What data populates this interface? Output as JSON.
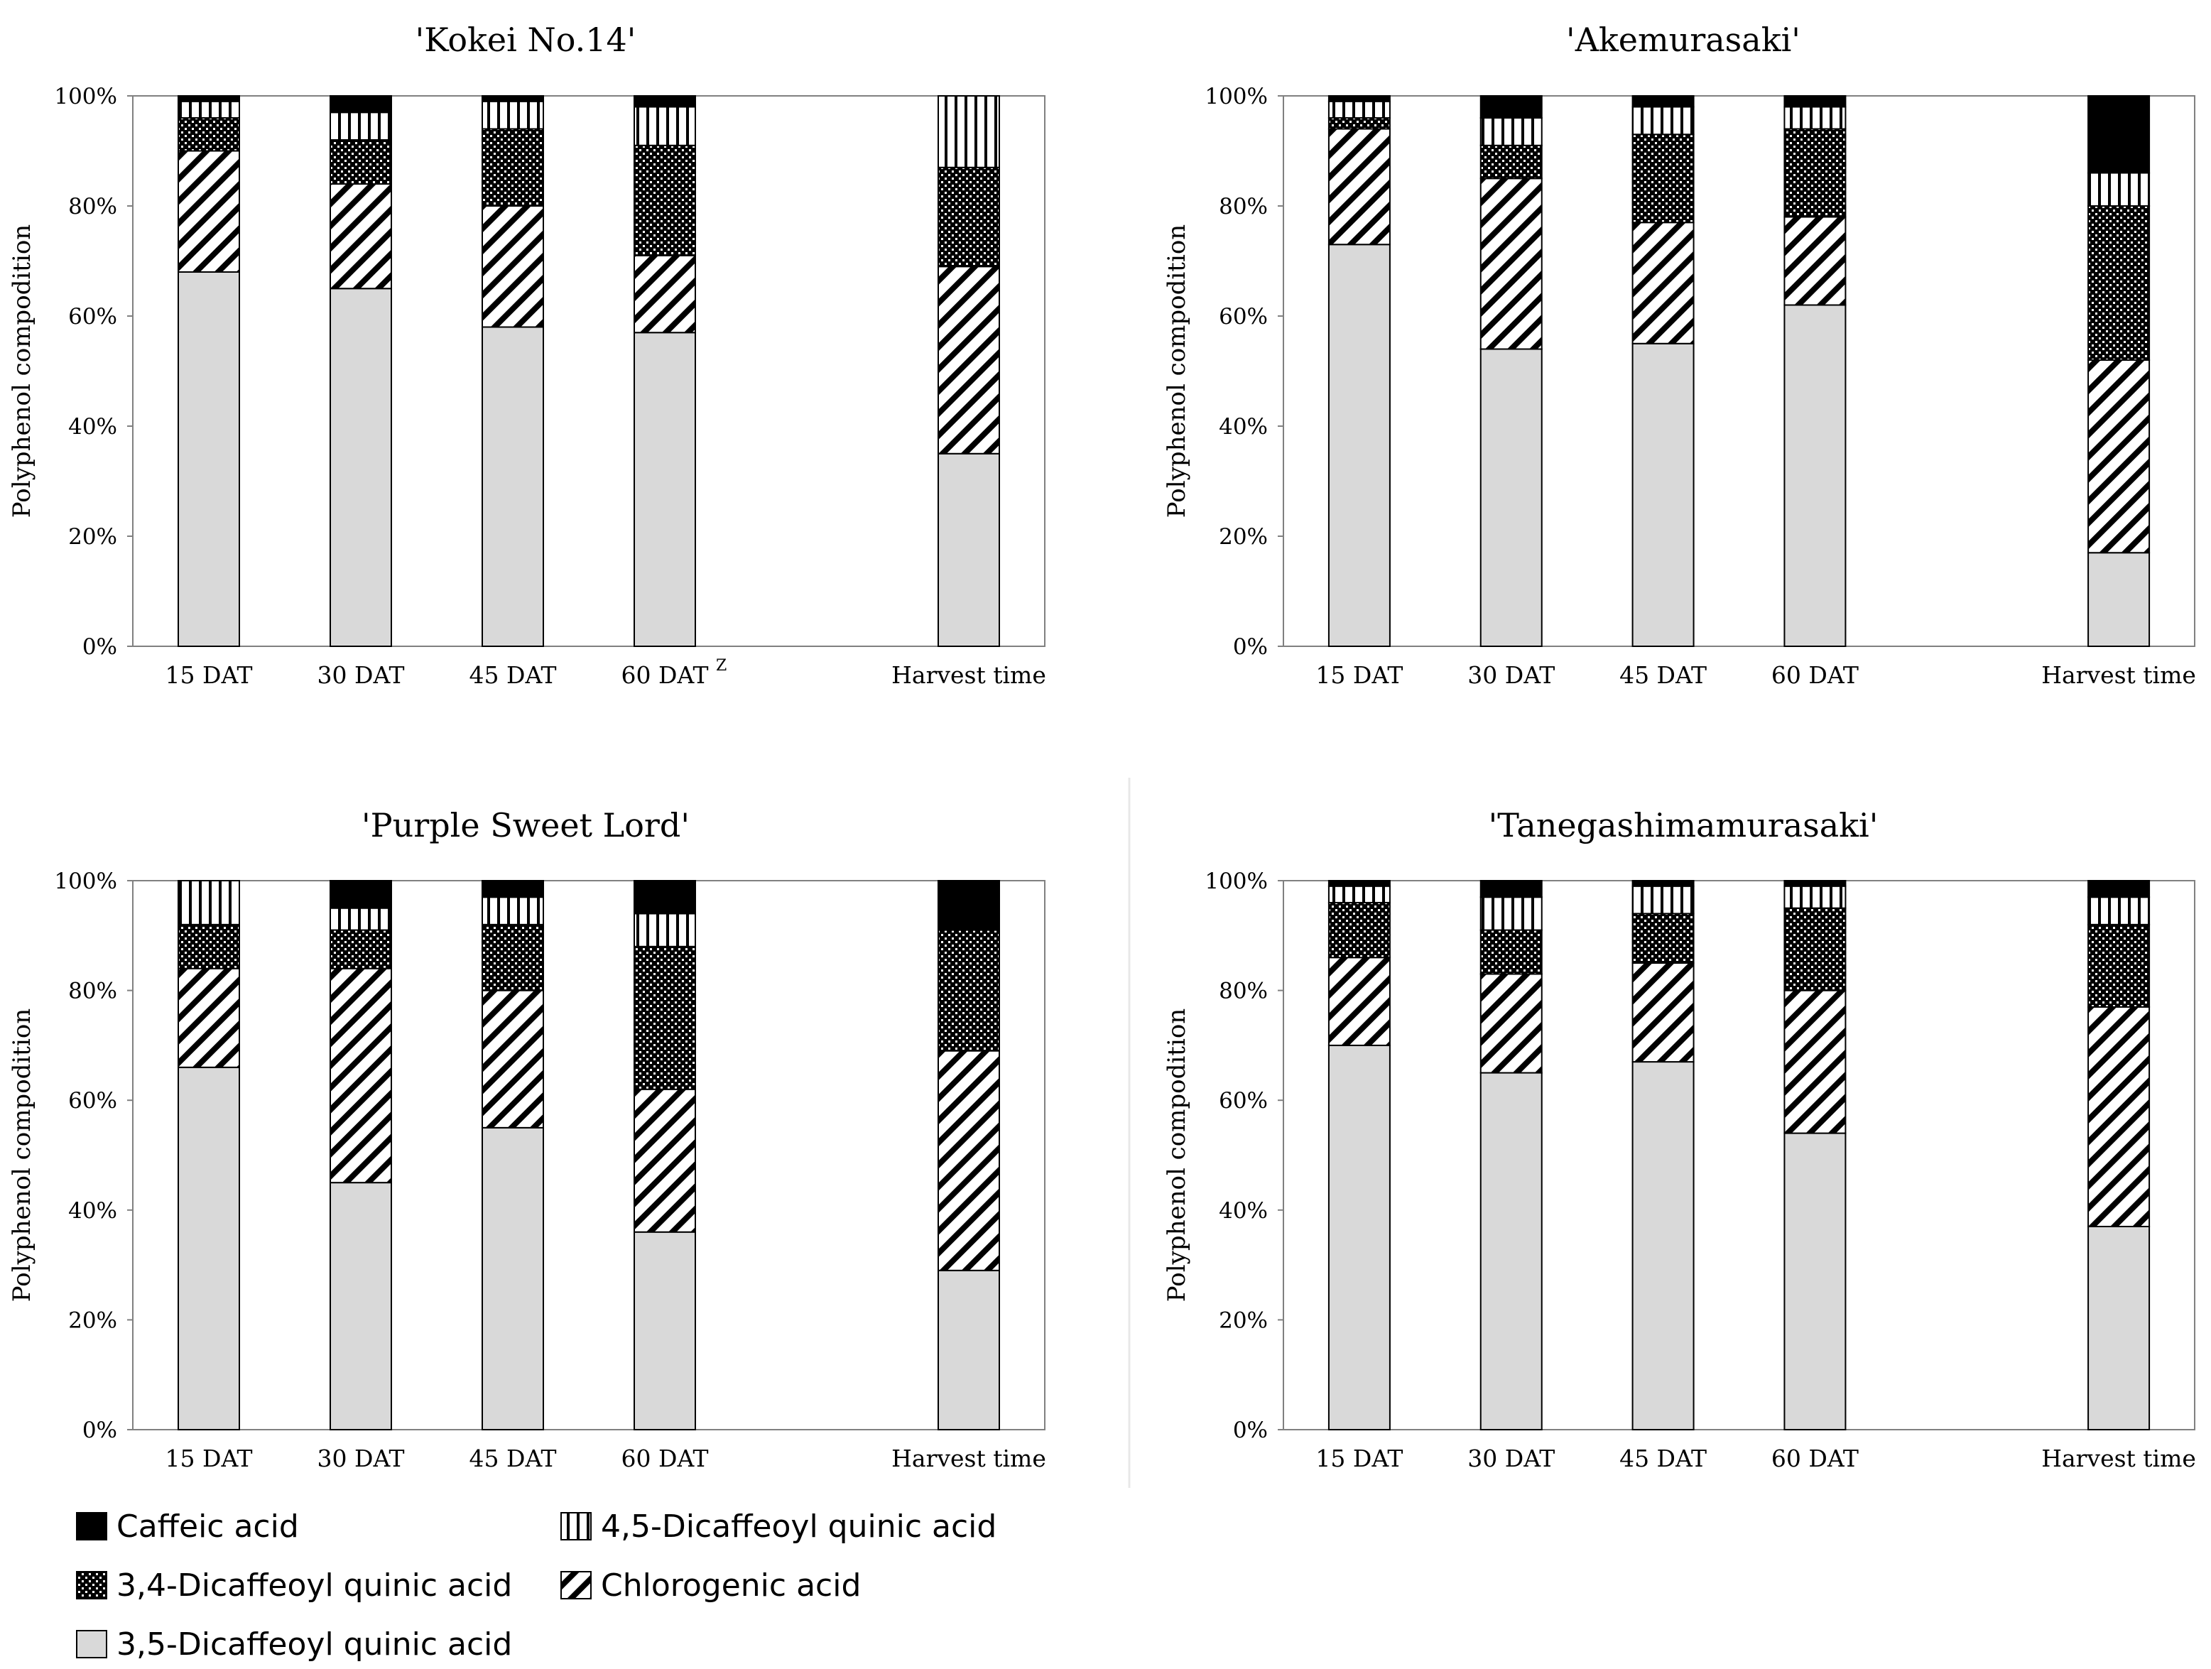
{
  "chart_data": [
    {
      "type": "bar",
      "stacked": true,
      "title": "'Kokei No.14'",
      "ylabel": "Polyphenol compodition",
      "categories": [
        "15 DAT",
        "30 DAT",
        "45 DAT",
        "60 DAT",
        "Harvest time"
      ],
      "category_superscripts": [
        "",
        "",
        "",
        "Z",
        ""
      ],
      "category_positions": [
        1,
        2,
        3,
        4,
        6
      ],
      "yticks": [
        "0%",
        "20%",
        "40%",
        "60%",
        "80%",
        "100%"
      ],
      "ylim": [
        0,
        100
      ],
      "series": [
        {
          "name": "3,5-Dicaffeoyl quinic acid",
          "values": [
            68,
            65,
            58,
            57,
            35
          ]
        },
        {
          "name": "Chlorogenic acid",
          "values": [
            22,
            19,
            22,
            14,
            34
          ]
        },
        {
          "name": "3,4-Dicaffeoyl quinic acid",
          "values": [
            6,
            8,
            14,
            20,
            18
          ]
        },
        {
          "name": "4,5-Dicaffeoyl quinic acid",
          "values": [
            3,
            5,
            5,
            7,
            13
          ]
        },
        {
          "name": "Caffeic acid",
          "values": [
            1,
            3,
            1,
            2,
            0
          ]
        }
      ]
    },
    {
      "type": "bar",
      "stacked": true,
      "title": "'Akemurasaki'",
      "ylabel": "Polyphenol compodition",
      "categories": [
        "15 DAT",
        "30 DAT",
        "45 DAT",
        "60 DAT",
        "Harvest time"
      ],
      "category_superscripts": [
        "",
        "",
        "",
        "",
        ""
      ],
      "category_positions": [
        1,
        2,
        3,
        4,
        6
      ],
      "yticks": [
        "0%",
        "20%",
        "40%",
        "60%",
        "80%",
        "100%"
      ],
      "ylim": [
        0,
        100
      ],
      "series": [
        {
          "name": "3,5-Dicaffeoyl quinic acid",
          "values": [
            73,
            54,
            55,
            62,
            17
          ]
        },
        {
          "name": "Chlorogenic acid",
          "values": [
            21,
            31,
            22,
            16,
            35
          ]
        },
        {
          "name": "3,4-Dicaffeoyl quinic acid",
          "values": [
            2,
            6,
            16,
            16,
            28
          ]
        },
        {
          "name": "4,5-Dicaffeoyl quinic acid",
          "values": [
            3,
            5,
            5,
            4,
            6
          ]
        },
        {
          "name": "Caffeic acid",
          "values": [
            1,
            4,
            2,
            2,
            14
          ]
        }
      ]
    },
    {
      "type": "bar",
      "stacked": true,
      "title": "'Purple Sweet Lord'",
      "ylabel": "Polyphenol compodition",
      "categories": [
        "15 DAT",
        "30 DAT",
        "45 DAT",
        "60 DAT",
        "Harvest time"
      ],
      "category_superscripts": [
        "",
        "",
        "",
        "",
        ""
      ],
      "category_positions": [
        1,
        2,
        3,
        4,
        6
      ],
      "yticks": [
        "0%",
        "20%",
        "40%",
        "60%",
        "80%",
        "100%"
      ],
      "ylim": [
        0,
        100
      ],
      "series": [
        {
          "name": "3,5-Dicaffeoyl quinic acid",
          "values": [
            66,
            45,
            55,
            36,
            29
          ]
        },
        {
          "name": "Chlorogenic acid",
          "values": [
            18,
            39,
            25,
            26,
            40
          ]
        },
        {
          "name": "3,4-Dicaffeoyl quinic acid",
          "values": [
            8,
            7,
            12,
            26,
            22
          ]
        },
        {
          "name": "4,5-Dicaffeoyl quinic acid",
          "values": [
            8,
            4,
            5,
            6,
            0
          ]
        },
        {
          "name": "Caffeic acid",
          "values": [
            0,
            5,
            3,
            6,
            9
          ]
        }
      ]
    },
    {
      "type": "bar",
      "stacked": true,
      "title": "'Tanegashimamurasaki'",
      "ylabel": "Polyphenol compodition",
      "categories": [
        "15 DAT",
        "30 DAT",
        "45 DAT",
        "60 DAT",
        "Harvest time"
      ],
      "category_superscripts": [
        "",
        "",
        "",
        "",
        ""
      ],
      "category_positions": [
        1,
        2,
        3,
        4,
        6
      ],
      "yticks": [
        "0%",
        "20%",
        "40%",
        "60%",
        "80%",
        "100%"
      ],
      "ylim": [
        0,
        100
      ],
      "series": [
        {
          "name": "3,5-Dicaffeoyl quinic acid",
          "values": [
            70,
            65,
            67,
            54,
            37
          ]
        },
        {
          "name": "Chlorogenic acid",
          "values": [
            16,
            18,
            18,
            26,
            40
          ]
        },
        {
          "name": "3,4-Dicaffeoyl quinic acid",
          "values": [
            10,
            8,
            9,
            15,
            15
          ]
        },
        {
          "name": "4,5-Dicaffeoyl quinic acid",
          "values": [
            3,
            6,
            5,
            4,
            5
          ]
        },
        {
          "name": "Caffeic acid",
          "values": [
            1,
            3,
            1,
            1,
            3
          ]
        }
      ]
    }
  ],
  "legend": [
    {
      "name": "Caffeic acid",
      "pattern": "solid-black"
    },
    {
      "name": "4,5-Dicaffeoyl quinic acid",
      "pattern": "vertical-lines"
    },
    {
      "name": "3,4-Dicaffeoyl quinic acid",
      "pattern": "checker-dots"
    },
    {
      "name": "Chlorogenic acid",
      "pattern": "diagonal-lines"
    },
    {
      "name": "3,5-Dicaffeoyl quinic acid",
      "pattern": "light-gray"
    }
  ],
  "colors": {
    "light_gray": "#d9d9d9",
    "black": "#000000",
    "axis": "#808080"
  }
}
